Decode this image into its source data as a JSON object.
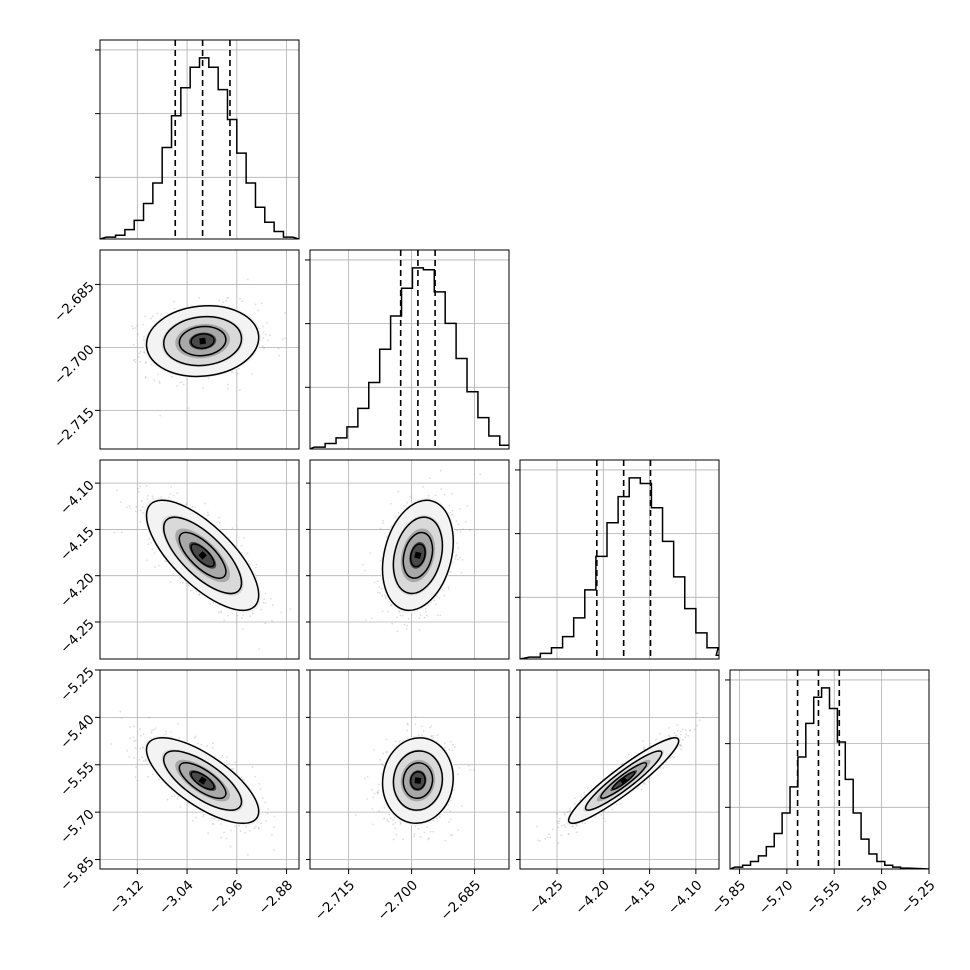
{
  "chart_data": {
    "type": "corner",
    "n_params": 4,
    "grid": true,
    "colors": {
      "line": "#000000",
      "grid": "#b0b0b0",
      "points": "#9e9e9e",
      "axes": "#000000"
    },
    "axes": [
      {
        "range": [
          -3.18,
          -2.86
        ],
        "ticks": [
          -3.12,
          -3.04,
          -2.96,
          -2.88
        ],
        "tick_labels": [
          "−3.12",
          "−3.04",
          "−2.96",
          "−2.88"
        ],
        "mean": -3.015,
        "sd": 0.044,
        "quantiles": [
          -3.059,
          -3.015,
          -2.971
        ]
      },
      {
        "range": [
          -2.7242,
          -2.6768
        ],
        "ticks": [
          -2.715,
          -2.7,
          -2.685
        ],
        "tick_labels": [
          "−2.715",
          "−2.700",
          "−2.685"
        ],
        "mean": -2.6985,
        "sd": 0.0041,
        "quantiles": [
          -2.7026,
          -2.6985,
          -2.6944
        ]
      },
      {
        "range": [
          -4.29,
          -4.075
        ],
        "ticks": [
          -4.25,
          -4.2,
          -4.15,
          -4.1
        ],
        "tick_labels": [
          "−4.25",
          "−4.20",
          "−4.15",
          "−4.10"
        ],
        "mean": -4.178,
        "sd": 0.029,
        "quantiles": [
          -4.207,
          -4.178,
          -4.149
        ]
      },
      {
        "range": [
          -5.88,
          -5.25
        ],
        "ticks": [
          -5.85,
          -5.7,
          -5.55,
          -5.4,
          -5.25
        ],
        "tick_labels": [
          "−5.85",
          "−5.70",
          "−5.55",
          "−5.40",
          "−5.25"
        ],
        "mean": -5.6,
        "sd": 0.066,
        "quantiles": [
          -5.666,
          -5.6,
          -5.534
        ]
      }
    ],
    "histograms": [
      {
        "param": 0,
        "bins": [
          -3.17,
          -3.155,
          -3.14,
          -3.125,
          -3.11,
          -3.095,
          -3.08,
          -3.065,
          -3.05,
          -3.035,
          -3.02,
          -3.005,
          -2.99,
          -2.975,
          -2.96,
          -2.945,
          -2.93,
          -2.915,
          -2.9,
          -2.885
        ],
        "counts": [
          0.01,
          0.02,
          0.05,
          0.1,
          0.19,
          0.3,
          0.49,
          0.66,
          0.81,
          0.92,
          0.97,
          0.92,
          0.8,
          0.64,
          0.46,
          0.3,
          0.17,
          0.09,
          0.04,
          0.01
        ]
      },
      {
        "param": 1,
        "bins": [
          -2.7232,
          -2.7206,
          -2.718,
          -2.7154,
          -2.7128,
          -2.7102,
          -2.7076,
          -2.705,
          -2.7024,
          -2.6998,
          -2.6972,
          -2.6946,
          -2.692,
          -2.6894,
          -2.6868,
          -2.6842,
          -2.6816,
          -2.679
        ],
        "counts": [
          0.01,
          0.03,
          0.06,
          0.12,
          0.22,
          0.36,
          0.54,
          0.72,
          0.87,
          0.98,
          0.97,
          0.85,
          0.68,
          0.49,
          0.31,
          0.17,
          0.07,
          0.02
        ]
      },
      {
        "param": 2,
        "bins": [
          -4.28,
          -4.268,
          -4.256,
          -4.244,
          -4.232,
          -4.22,
          -4.208,
          -4.196,
          -4.184,
          -4.172,
          -4.16,
          -4.148,
          -4.136,
          -4.124,
          -4.112,
          -4.1,
          -4.088,
          -4.078
        ],
        "counts": [
          0.01,
          0.03,
          0.06,
          0.12,
          0.22,
          0.37,
          0.55,
          0.73,
          0.87,
          0.97,
          0.94,
          0.81,
          0.63,
          0.44,
          0.27,
          0.14,
          0.06,
          0.02
        ]
      },
      {
        "param": 3,
        "bins": [
          -5.865,
          -5.84,
          -5.815,
          -5.79,
          -5.765,
          -5.74,
          -5.715,
          -5.69,
          -5.665,
          -5.64,
          -5.615,
          -5.59,
          -5.565,
          -5.54,
          -5.515,
          -5.49,
          -5.465,
          -5.44,
          -5.415,
          -5.39,
          -5.365,
          -5.34
        ],
        "counts": [
          0.01,
          0.02,
          0.04,
          0.07,
          0.12,
          0.19,
          0.3,
          0.44,
          0.6,
          0.78,
          0.92,
          0.97,
          0.86,
          0.68,
          0.48,
          0.3,
          0.16,
          0.08,
          0.04,
          0.02,
          0.01,
          0.005
        ]
      }
    ],
    "correlations": [
      {
        "pair": [
          1,
          0
        ],
        "rho": 0.1
      },
      {
        "pair": [
          2,
          0
        ],
        "rho": -0.72
      },
      {
        "pair": [
          2,
          1
        ],
        "rho": 0.25
      },
      {
        "pair": [
          3,
          0
        ],
        "rho": -0.72
      },
      {
        "pair": [
          3,
          1
        ],
        "rho": 0.05
      },
      {
        "pair": [
          3,
          2
        ],
        "rho": 0.93
      }
    ],
    "title": "",
    "xlabel": "",
    "ylabel": ""
  }
}
